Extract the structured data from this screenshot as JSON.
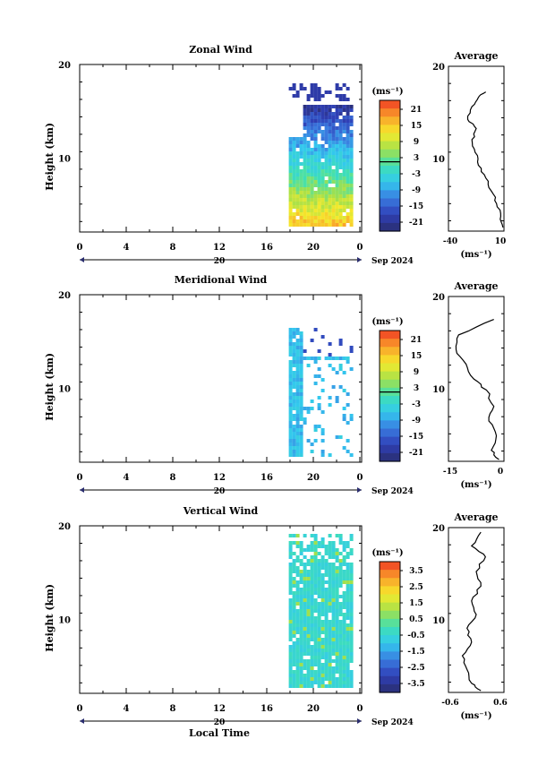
{
  "panels": [
    {
      "title": "Zonal Wind",
      "ylabel": "Height (km)",
      "y_ticks": [
        "20",
        "10"
      ],
      "x_ticks": [
        "0",
        "4",
        "8",
        "12",
        "16",
        "20",
        "0"
      ],
      "date_day": "20",
      "date_month_year": "Sep 2024",
      "colorbar_unit": "(ms⁻¹)",
      "colorbar_ticks": [
        "21",
        "15",
        "9",
        "3",
        "-3",
        "-9",
        "-15",
        "-21"
      ],
      "average_title": "Average",
      "average_ticks_y": [
        "20",
        "10"
      ],
      "average_ticks_x": [
        "-40",
        "10"
      ],
      "average_xunit": "(ms⁻¹)"
    },
    {
      "title": "Meridional Wind",
      "ylabel": "Height (km)",
      "y_ticks": [
        "20",
        "10"
      ],
      "x_ticks": [
        "0",
        "4",
        "8",
        "12",
        "16",
        "20",
        "0"
      ],
      "date_day": "20",
      "date_month_year": "Sep 2024",
      "colorbar_unit": "(ms⁻¹)",
      "colorbar_ticks": [
        "21",
        "15",
        "9",
        "3",
        "-3",
        "-9",
        "-15",
        "-21"
      ],
      "average_title": "Average",
      "average_ticks_y": [
        "20",
        "10"
      ],
      "average_ticks_x": [
        "-15",
        "0"
      ],
      "average_xunit": "(ms⁻¹)"
    },
    {
      "title": "Vertical Wind",
      "ylabel": "Height (km)",
      "y_ticks": [
        "20",
        "10"
      ],
      "x_ticks": [
        "0",
        "4",
        "8",
        "12",
        "16",
        "20",
        "0"
      ],
      "date_day": "20",
      "date_month_year": "Sep 2024",
      "colorbar_unit": "(ms⁻¹)",
      "colorbar_ticks": [
        "3.5",
        "2.5",
        "1.5",
        "0.5",
        "-0.5",
        "-1.5",
        "-2.5",
        "-3.5"
      ],
      "average_title": "Average",
      "average_ticks_y": [
        "20",
        "10"
      ],
      "average_ticks_x": [
        "-0.6",
        "0.6"
      ],
      "average_xunit": "(ms⁻¹)"
    }
  ],
  "xlabel_bottom": "Local Time",
  "colormap": [
    "#f03a23",
    "#f9a02b",
    "#f6ea2c",
    "#a4e04a",
    "#3fe0b4",
    "#33c9ee",
    "#3a7ce0",
    "#2f3fb6",
    "#2a2d6e"
  ],
  "chart_data": [
    {
      "type": "heatmap",
      "title": "Zonal Wind",
      "xlabel": "",
      "ylabel": "Height (km)",
      "xlim_hours": [
        0,
        24
      ],
      "ylim_km": [
        2,
        20
      ],
      "color_range": [
        -24,
        24
      ],
      "data_time_range_hours": [
        17.8,
        23.0
      ],
      "average_profile": {
        "xlim": [
          -40,
          12
        ],
        "points": [
          [
            -5,
            17.2
          ],
          [
            -12,
            16.6
          ],
          [
            -18,
            15.6
          ],
          [
            -22,
            14.2
          ],
          [
            -14,
            13.2
          ],
          [
            -18,
            12.0
          ],
          [
            -15,
            10.6
          ],
          [
            -12,
            9.2
          ],
          [
            -5,
            7.8
          ],
          [
            0,
            6.4
          ],
          [
            5,
            5.0
          ],
          [
            9,
            3.6
          ],
          [
            11,
            2.4
          ]
        ]
      }
    },
    {
      "type": "heatmap",
      "title": "Meridional Wind",
      "xlabel": "",
      "ylabel": "Height (km)",
      "xlim_hours": [
        0,
        24
      ],
      "ylim_km": [
        2,
        20
      ],
      "color_range": [
        -24,
        24
      ],
      "data_time_range_hours": [
        17.8,
        23.0
      ],
      "average_profile": {
        "xlim": [
          -20,
          2
        ],
        "points": [
          [
            -2,
            17.5
          ],
          [
            -16,
            15.8
          ],
          [
            -17,
            14.2
          ],
          [
            -13,
            12.6
          ],
          [
            -10,
            11.0
          ],
          [
            -5,
            9.8
          ],
          [
            -2,
            8.0
          ],
          [
            -4,
            6.4
          ],
          [
            -1,
            4.8
          ],
          [
            -3,
            3.2
          ],
          [
            0,
            2.2
          ]
        ]
      }
    },
    {
      "type": "heatmap",
      "title": "Vertical Wind",
      "xlabel": "Local Time",
      "ylabel": "Height (km)",
      "xlim_hours": [
        0,
        24
      ],
      "ylim_km": [
        2,
        20
      ],
      "color_range": [
        -4,
        4
      ],
      "data_time_range_hours": [
        17.8,
        23.0
      ],
      "average_profile": {
        "xlim": [
          -0.6,
          0.6
        ],
        "points": [
          [
            0.1,
            19.5
          ],
          [
            -0.1,
            18.0
          ],
          [
            0.2,
            16.8
          ],
          [
            0.0,
            15.2
          ],
          [
            0.1,
            13.6
          ],
          [
            -0.1,
            12.0
          ],
          [
            0.0,
            10.5
          ],
          [
            -0.2,
            9.0
          ],
          [
            -0.1,
            7.5
          ],
          [
            -0.3,
            6.0
          ],
          [
            -0.2,
            4.5
          ],
          [
            -0.1,
            3.0
          ],
          [
            0.1,
            2.2
          ]
        ]
      }
    }
  ]
}
